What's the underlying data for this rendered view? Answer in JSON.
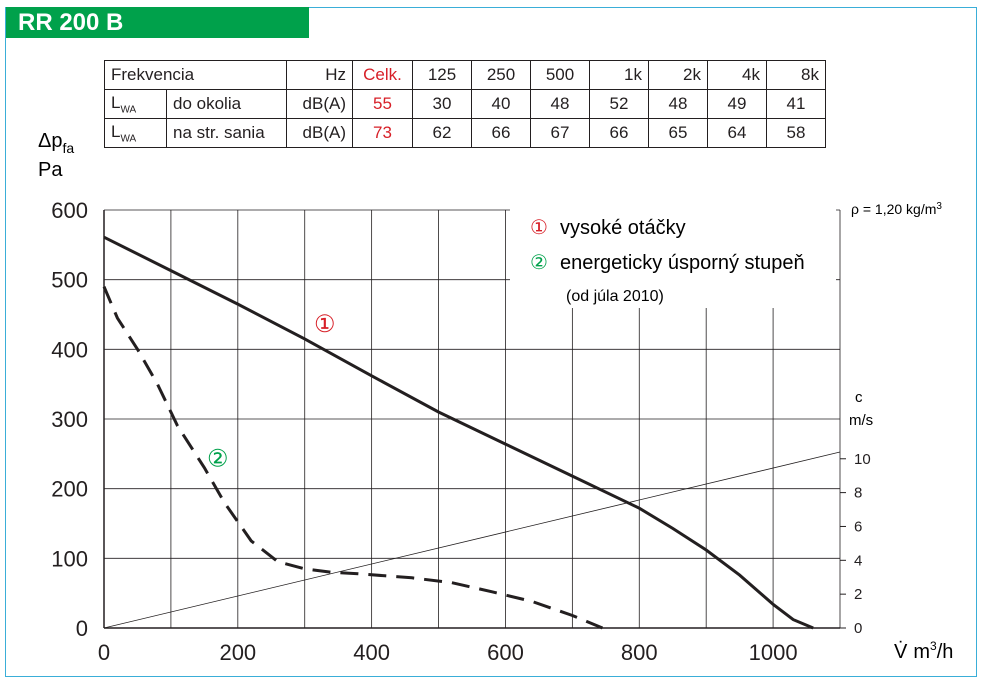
{
  "title": "RR 200 B",
  "noise_table": {
    "header": [
      "Frekvencia",
      "Hz",
      "Celk.",
      "125",
      "250",
      "500",
      "1k",
      "2k",
      "4k",
      "8k"
    ],
    "rows": [
      {
        "label_main": "L",
        "label_sub": "WA",
        "label_desc": "do okolia",
        "unit": "dB(A)",
        "total": "55",
        "values": [
          "30",
          "40",
          "48",
          "52",
          "48",
          "49",
          "41"
        ]
      },
      {
        "label_main": "L",
        "label_sub": "WA",
        "label_desc": "na str. sania",
        "unit": "dB(A)",
        "total": "73",
        "values": [
          "62",
          "66",
          "67",
          "66",
          "65",
          "64",
          "58"
        ]
      }
    ]
  },
  "chart_data": {
    "type": "line",
    "ylabel_main": "Δp",
    "ylabel_sub": "fa",
    "ylabel_unit": "Pa",
    "xlabel_main": "V̇",
    "xlabel_unit": "m",
    "xlabel_unit_sup": "3",
    "xlabel_unit_tail": "/h",
    "density_note_main": "ρ = 1,20 kg/m",
    "density_note_sup": "3",
    "xlim": [
      0,
      1100
    ],
    "ylim": [
      0,
      600
    ],
    "x_ticks": [
      0,
      200,
      400,
      600,
      800,
      1000
    ],
    "y_ticks": [
      0,
      100,
      200,
      300,
      400,
      500,
      600
    ],
    "grid": true,
    "right_axis": {
      "label": "c",
      "unit": "m/s",
      "ticks": [
        0,
        2,
        4,
        6,
        8,
        10
      ],
      "ylim": [
        0,
        24.7
      ]
    },
    "legend": {
      "entries": [
        {
          "marker": "①",
          "text": "vysoké otáčky",
          "color": "#d71f27"
        },
        {
          "marker": "②",
          "text": "energeticky úsporný stupeň",
          "color": "#00a14b"
        }
      ],
      "note": "(od júla 2010)",
      "placement": "top-right"
    },
    "series": [
      {
        "marker": "①",
        "marker_color": "#d71f27",
        "style": "solid",
        "x": [
          0,
          100,
          200,
          300,
          400,
          500,
          600,
          700,
          800,
          850,
          900,
          950,
          1000,
          1030,
          1060
        ],
        "values": [
          561,
          513,
          465,
          415,
          362,
          310,
          264,
          218,
          172,
          143,
          112,
          76,
          34,
          12,
          0
        ]
      },
      {
        "marker": "②",
        "marker_color": "#00a14b",
        "style": "dashed",
        "x": [
          0,
          20,
          50,
          80,
          110,
          150,
          180,
          220,
          260,
          300,
          340,
          380,
          420,
          460,
          520,
          580,
          640,
          700,
          745
        ],
        "values": [
          490,
          445,
          400,
          350,
          290,
          230,
          180,
          125,
          95,
          85,
          80,
          78,
          75,
          72,
          65,
          52,
          38,
          18,
          0
        ]
      },
      {
        "style": "thin",
        "x": [
          0,
          1100
        ],
        "values": [
          0,
          10.4
        ],
        "axis": "right"
      }
    ],
    "series_label_positions": [
      {
        "x": 330,
        "y": 425
      },
      {
        "x": 170,
        "y": 232
      }
    ]
  }
}
